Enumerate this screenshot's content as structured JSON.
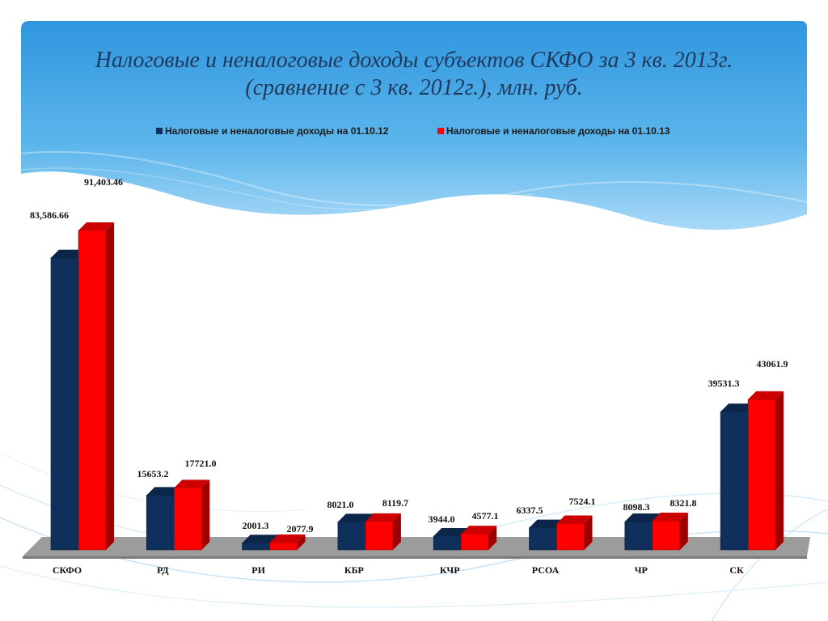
{
  "title_line1": "Налоговые и неналоговые доходы субъектов СКФО за 3 кв. 2013г.",
  "title_line2": "(сравнение с 3 кв. 2012г.), млн. руб.",
  "colors": {
    "series1": "#0f2f5c",
    "series2": "#ff0000",
    "floor": "#9a9a9a",
    "sky_top": "#2e95dd",
    "sky_light": "#a9d9f7"
  },
  "chart_data": {
    "type": "bar",
    "categories": [
      "СКФО",
      "РД",
      "РИ",
      "КБР",
      "КЧР",
      "РСОА",
      "ЧР",
      "СК"
    ],
    "series": [
      {
        "name": "Налоговые и неналоговые доходы на 01.10.12",
        "values": [
          83586.66,
          15653.2,
          2001.3,
          8021.0,
          3944.0,
          6337.5,
          8098.3,
          39531.3
        ],
        "labels": [
          "83,586.66",
          "15653.2",
          "2001.3",
          "8021.0",
          "3944.0",
          "6337.5",
          "8098.3",
          "39531.3"
        ]
      },
      {
        "name": "Налоговые и неналоговые доходы на 01.10.13",
        "values": [
          91403.46,
          17721.0,
          2077.9,
          8119.7,
          4577.1,
          7524.1,
          8321.8,
          43061.9
        ],
        "labels": [
          "91,403.46",
          "17721.0",
          "2077.9",
          "8119.7",
          "4577.1",
          "7524.1",
          "8321.8",
          "43061.9"
        ]
      }
    ],
    "legend_position": "top",
    "grid": false
  }
}
